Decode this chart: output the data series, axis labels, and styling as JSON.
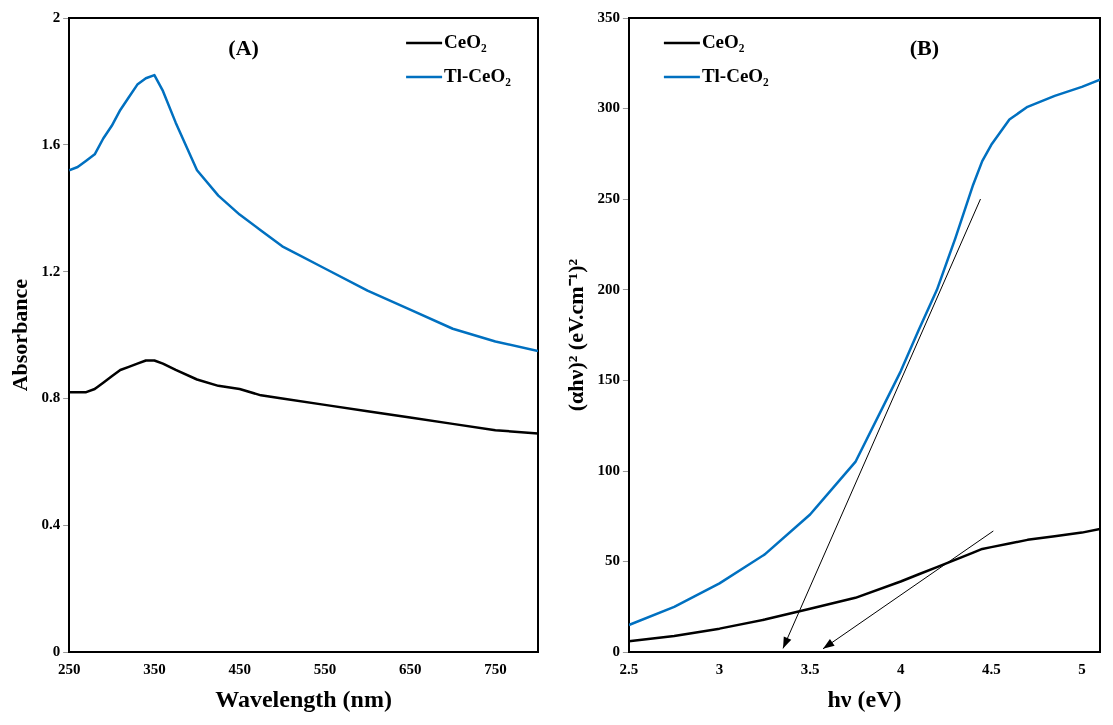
{
  "chart_data": [
    {
      "type": "line",
      "title": "(A)",
      "xlabel": "Wavelength (nm)",
      "ylabel": "Absorbance",
      "legend": "top right",
      "x": [
        250,
        260,
        270,
        280,
        290,
        300,
        310,
        320,
        330,
        340,
        350,
        360,
        375,
        400,
        425,
        450,
        475,
        500,
        550,
        600,
        650,
        700,
        750,
        800
      ],
      "xlim": [
        250,
        800
      ],
      "xticks": [
        250,
        350,
        450,
        550,
        650,
        750
      ],
      "ylim": [
        0,
        2
      ],
      "yticks": [
        0,
        0.4,
        0.8,
        1.2,
        1.6,
        2
      ],
      "series": [
        {
          "name": "CeO₂",
          "color": "#000000",
          "values": [
            0.82,
            0.82,
            0.82,
            0.83,
            0.85,
            0.87,
            0.89,
            0.9,
            0.91,
            0.92,
            0.92,
            0.91,
            0.89,
            0.86,
            0.84,
            0.83,
            0.81,
            0.8,
            0.78,
            0.76,
            0.74,
            0.72,
            0.7,
            0.69
          ]
        },
        {
          "name": "Tl-CeO₂",
          "color": "#0070c0",
          "values": [
            1.52,
            1.53,
            1.55,
            1.57,
            1.62,
            1.66,
            1.71,
            1.75,
            1.79,
            1.81,
            1.82,
            1.77,
            1.67,
            1.52,
            1.44,
            1.38,
            1.33,
            1.28,
            1.21,
            1.14,
            1.08,
            1.02,
            0.98,
            0.95
          ]
        }
      ]
    },
    {
      "type": "line",
      "title": "(B)",
      "xlabel": "hν (eV)",
      "ylabel": "(αhν)² (eV.cm⁻¹)²",
      "legend": "top left",
      "x": [
        2.5,
        2.75,
        3,
        3.25,
        3.5,
        3.75,
        4,
        4.1,
        4.2,
        4.3,
        4.4,
        4.45,
        4.5,
        4.6,
        4.7,
        4.85,
        5,
        5.1
      ],
      "xlim": [
        2.5,
        5.1
      ],
      "xticks": [
        2.5,
        3,
        3.5,
        4,
        4.5,
        5
      ],
      "ylim": [
        0,
        350
      ],
      "yticks": [
        0,
        50,
        100,
        150,
        200,
        250,
        300,
        350
      ],
      "series": [
        {
          "name": "CeO₂",
          "color": "#000000",
          "values": [
            6,
            9,
            13,
            18,
            24,
            30,
            39,
            43,
            47,
            51,
            55,
            57,
            58,
            60,
            62,
            64,
            66,
            68
          ]
        },
        {
          "name": "Tl-CeO₂",
          "color": "#0070c0",
          "values": [
            15,
            25,
            38,
            54,
            76,
            105,
            155,
            178,
            200,
            228,
            258,
            271,
            280,
            294,
            301,
            307,
            312,
            316
          ]
        }
      ]
    }
  ]
}
